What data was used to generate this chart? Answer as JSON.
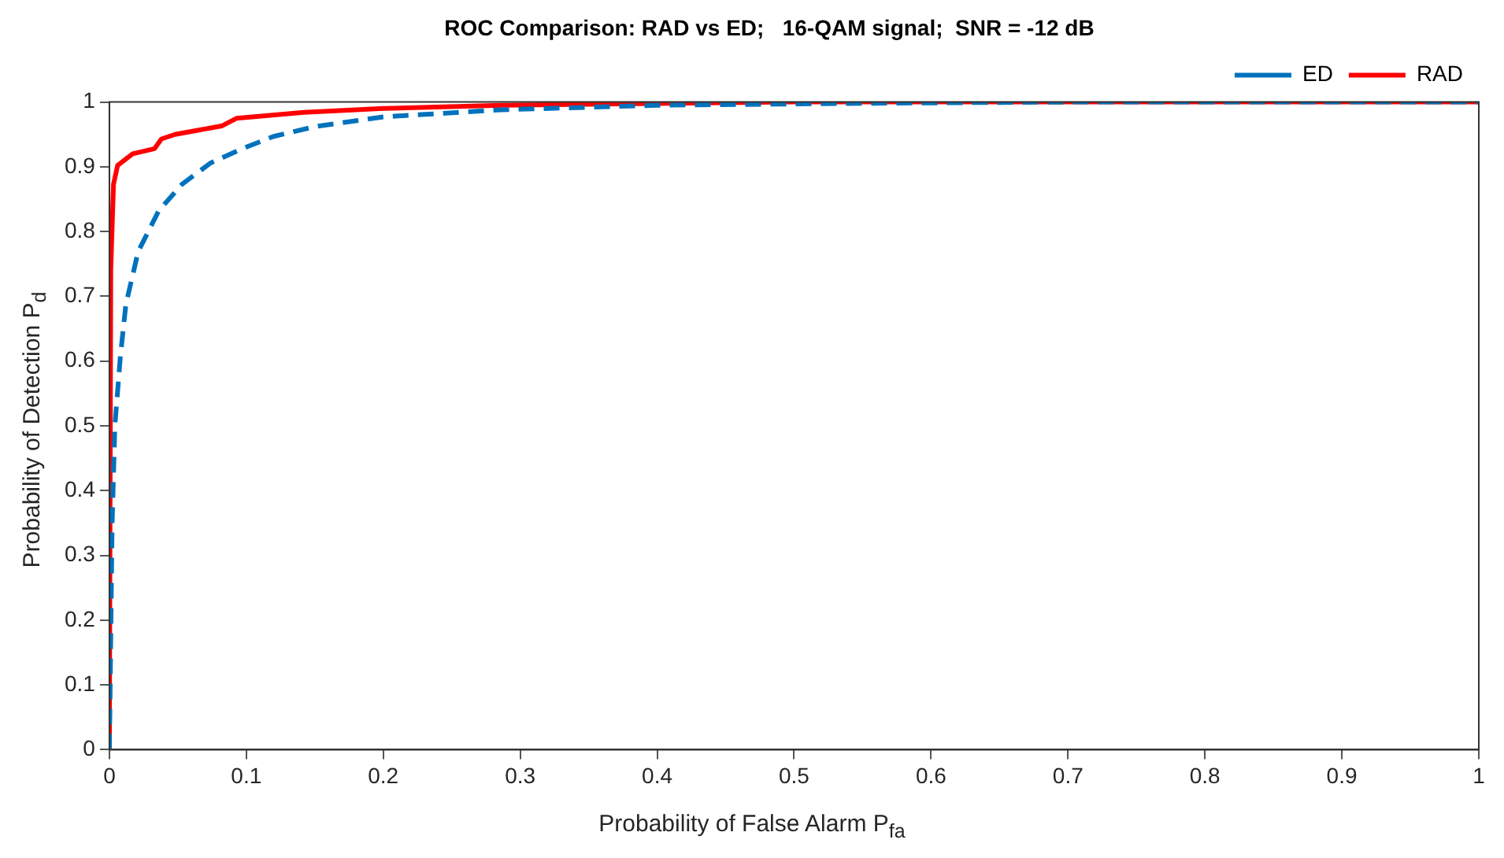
{
  "chart_data": {
    "type": "line",
    "title": "ROC Comparison: RAD vs ED;   16-QAM signal;  SNR = -12 dB",
    "xlabel": "Probability of False Alarm P$_{fa}$",
    "ylabel": "Probability of Detection P$_{d}$",
    "xlim": [
      0,
      1
    ],
    "ylim": [
      0,
      1
    ],
    "xticks": [
      0,
      0.1,
      0.2,
      0.3,
      0.4,
      0.5,
      0.6,
      0.7,
      0.8,
      0.9,
      1
    ],
    "yticks": [
      0,
      0.1,
      0.2,
      0.3,
      0.4,
      0.5,
      0.6,
      0.7,
      0.8,
      0.9,
      1
    ],
    "grid": false,
    "legend": "top right",
    "marker": "none",
    "series": [
      {
        "name": "ED",
        "color": "#0072bd",
        "line_style": "dashed",
        "x": [
          0,
          0.002,
          0.004,
          0.008,
          0.012,
          0.021,
          0.036,
          0.053,
          0.074,
          0.097,
          0.12,
          0.15,
          0.2,
          0.286,
          0.4,
          0.55,
          0.7,
          1
        ],
        "values": [
          0,
          0.35,
          0.5,
          0.607,
          0.687,
          0.769,
          0.832,
          0.873,
          0.906,
          0.928,
          0.947,
          0.962,
          0.977,
          0.988,
          0.995,
          0.998,
          1,
          1
        ]
      },
      {
        "name": "RAD",
        "color": "#ff0000",
        "line_style": "solid",
        "x": [
          0,
          0.001,
          0.003,
          0.006,
          0.017,
          0.033,
          0.038,
          0.048,
          0.082,
          0.093,
          0.142,
          0.2,
          0.286,
          0.5,
          1
        ],
        "values": [
          0,
          0.74,
          0.873,
          0.902,
          0.92,
          0.928,
          0.943,
          0.95,
          0.963,
          0.975,
          0.984,
          0.99,
          0.995,
          1,
          1
        ]
      }
    ]
  }
}
